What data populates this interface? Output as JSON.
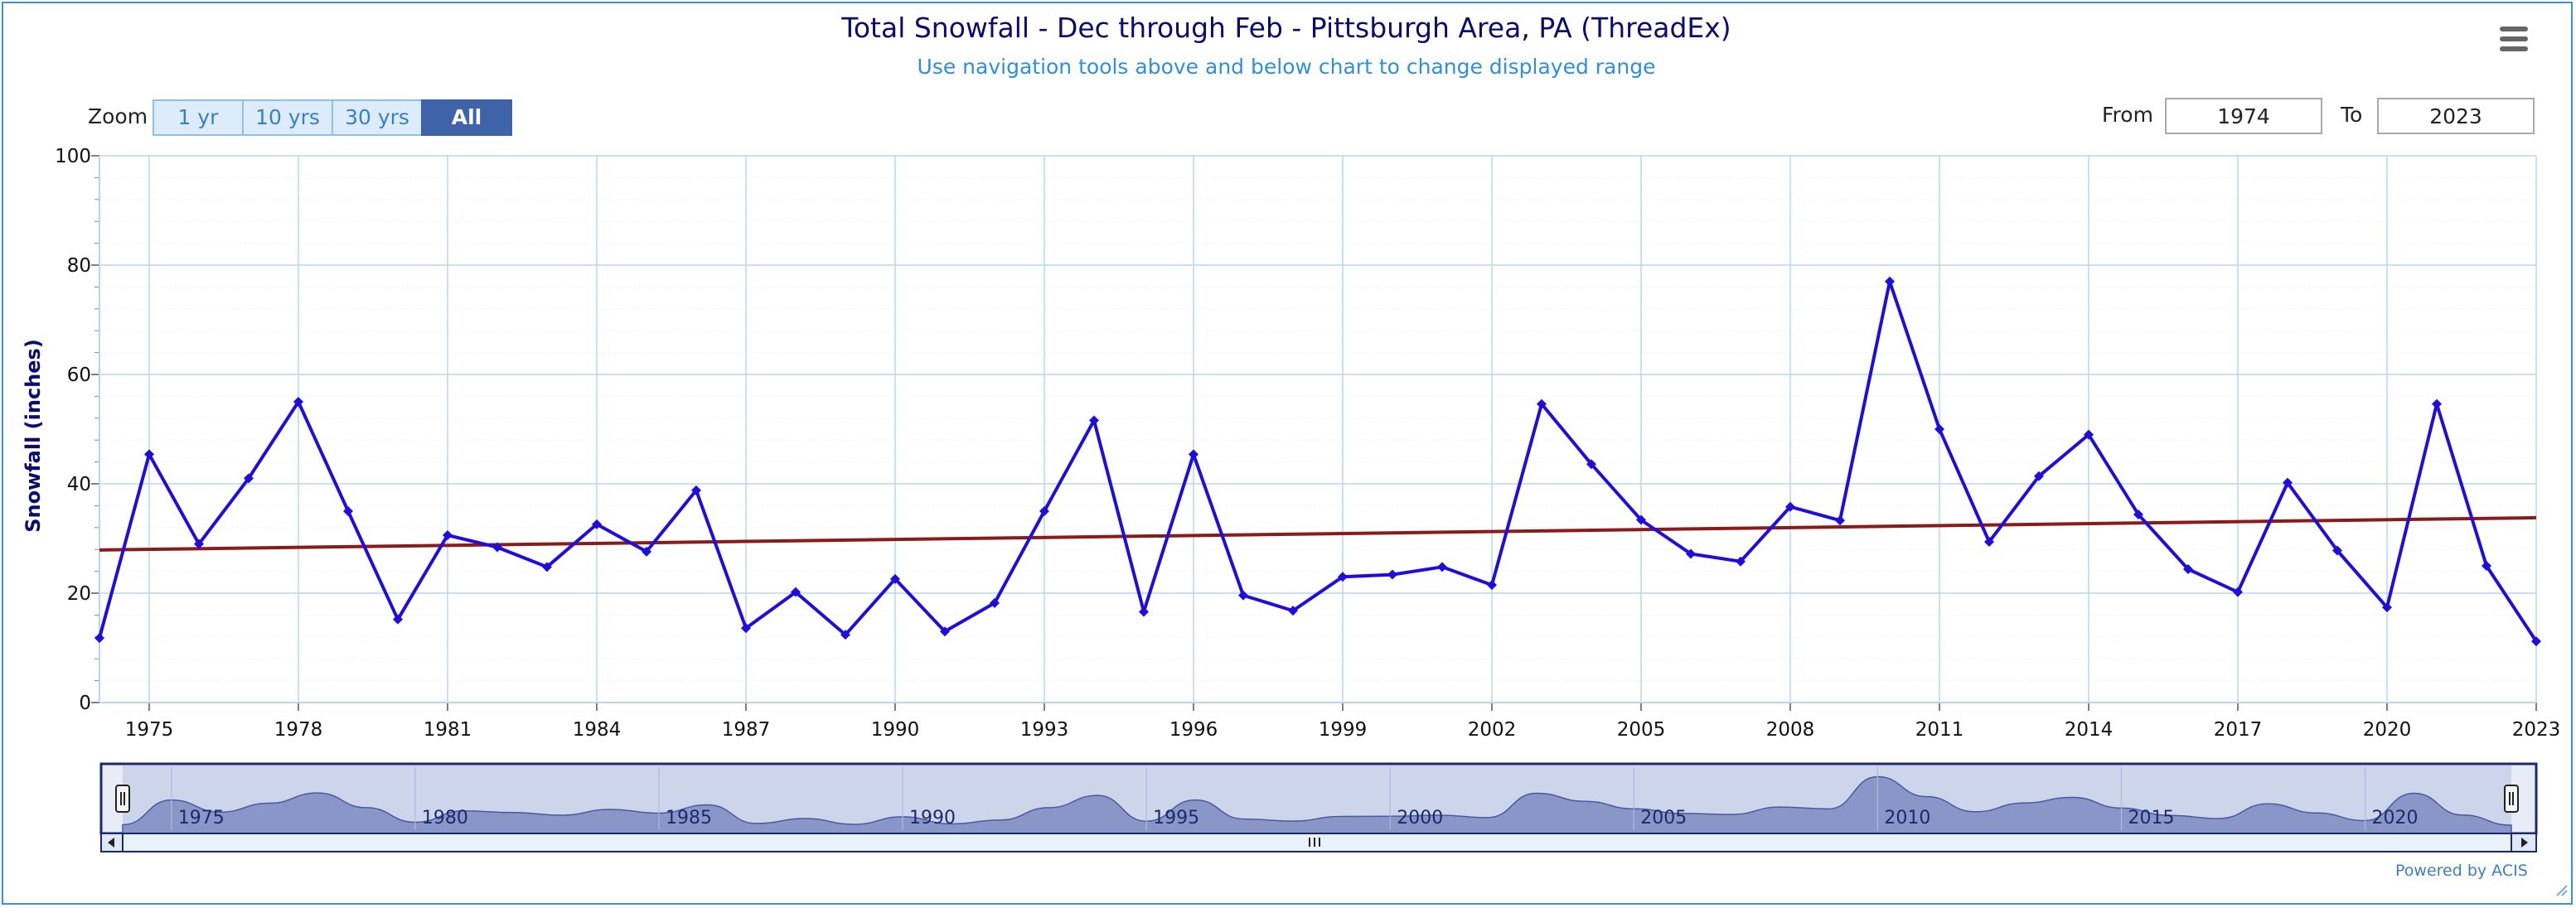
{
  "chart_data": {
    "type": "line",
    "title": "Total Snowfall - Dec through Feb - Pittsburgh Area, PA (ThreadEx)",
    "subtitle": "Use navigation tools above and below chart to change displayed range",
    "ylabel": "Snowfall (inches)",
    "ylim": [
      0,
      100
    ],
    "y_ticks": [
      "0",
      "20",
      "40",
      "60",
      "80",
      "100"
    ],
    "x_ticks": [
      1975,
      1978,
      1981,
      1984,
      1987,
      1990,
      1993,
      1996,
      1999,
      2002,
      2005,
      2008,
      2011,
      2014,
      2017,
      2020,
      2023
    ],
    "x_tick_labels": [
      "1975",
      "1978",
      "1981",
      "1984",
      "1987",
      "1990",
      "1993",
      "1996",
      "1999",
      "2002",
      "2005",
      "2008",
      "2011",
      "2014",
      "2017",
      "2020",
      "2023"
    ],
    "grid": true,
    "series": [
      {
        "color": "#1f0de0",
        "x": [
          1974,
          1975,
          1976,
          1977,
          1978,
          1979,
          1980,
          1981,
          1982,
          1983,
          1984,
          1985,
          1986,
          1987,
          1988,
          1989,
          1990,
          1991,
          1992,
          1993,
          1994,
          1995,
          1996,
          1997,
          1998,
          1999,
          2000,
          2001,
          2002,
          2003,
          2004,
          2005,
          2006,
          2007,
          2008,
          2009,
          2010,
          2011,
          2012,
          2013,
          2014,
          2015,
          2016,
          2017,
          2018,
          2019,
          2020,
          2021,
          2022,
          2023
        ],
        "values": [
          11.8,
          45.4,
          29.0,
          41.0,
          55.0,
          35.0,
          15.2,
          30.6,
          28.4,
          24.8,
          32.6,
          27.6,
          38.8,
          13.6,
          20.2,
          12.4,
          22.6,
          13.0,
          18.2,
          35.0,
          51.6,
          16.6,
          45.4,
          19.6,
          16.8,
          23.0,
          23.4,
          24.8,
          21.5,
          54.6,
          43.6,
          33.4,
          27.2,
          25.8,
          35.8,
          33.3,
          77.0,
          50.0,
          29.4,
          41.4,
          49.0,
          34.4,
          24.4,
          20.2,
          40.2,
          27.8,
          17.4,
          54.6,
          25.0,
          11.2
        ]
      },
      {
        "name": "trend",
        "color": "#8b1a1a",
        "x": [
          1974,
          2023
        ],
        "values": [
          27.9,
          33.8
        ]
      }
    ],
    "navigator": {
      "labels": [
        "1975",
        "1980",
        "1985",
        "1990",
        "1995",
        "2000",
        "2005",
        "2010",
        "2015",
        "2020"
      ]
    }
  },
  "toolbar": {
    "zoom_label": "Zoom",
    "zoom_buttons": [
      "1 yr",
      "10 yrs",
      "30 yrs",
      "All"
    ],
    "active_zoom": "All",
    "from_label": "From",
    "from_value": "1974",
    "to_label": "To",
    "to_value": "2023",
    "menu_icon": "hamburger-menu-icon"
  },
  "credit": "Powered by ACIS",
  "colors": {
    "title": "#0c0c6e",
    "subtitle": "#2f8fd8",
    "grid": "#b8d6f2",
    "series": "#1f0de0",
    "trend": "#8b1a1a",
    "navigator_fill": "#8b96c8",
    "active_button": "#3f63a8"
  }
}
